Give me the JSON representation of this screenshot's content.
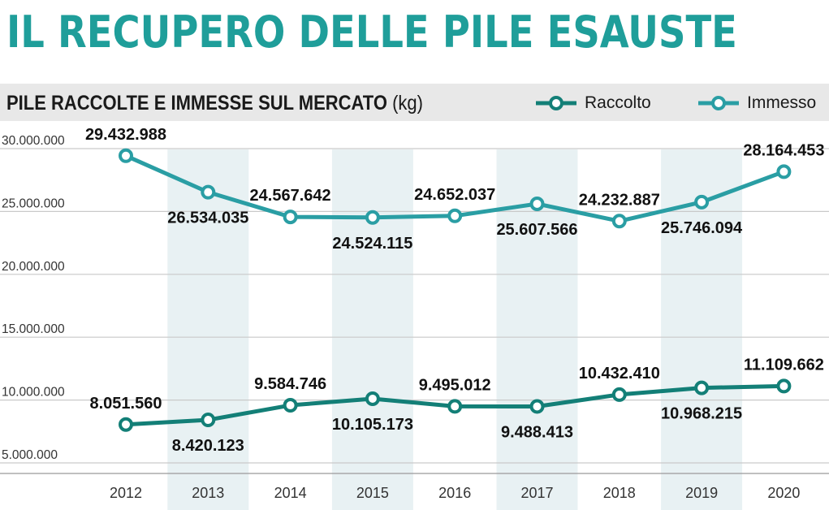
{
  "title": "IL RECUPERO DELLE PILE ESAUSTE",
  "subtitle": {
    "bold": "PILE RACCOLTE E IMMESSE SUL MERCATO",
    "unit": "(kg)"
  },
  "legend": [
    {
      "label": "Raccolto",
      "color": "#137f77"
    },
    {
      "label": "Immesso",
      "color": "#2a9ea4"
    }
  ],
  "chart_data": {
    "type": "line",
    "categories": [
      "2012",
      "2013",
      "2014",
      "2015",
      "2016",
      "2017",
      "2018",
      "2019",
      "2020"
    ],
    "series": [
      {
        "name": "Raccolto",
        "color": "#137f77",
        "values": [
          8051560,
          8420123,
          9584746,
          10105173,
          9495012,
          9488413,
          10432410,
          10968215,
          11109662
        ],
        "labels": [
          "8.051.560",
          "8.420.123",
          "9.584.746",
          "10.105.173",
          "9.495.012",
          "9.488.413",
          "10.432.410",
          "10.968.215",
          "11.109.662"
        ]
      },
      {
        "name": "Immesso",
        "color": "#2a9ea4",
        "values": [
          29432988,
          26534035,
          24567642,
          24524115,
          24652037,
          25607566,
          24232887,
          25746094,
          28164453
        ],
        "labels": [
          "29.432.988",
          "26.534.035",
          "24.567.642",
          "24.524.115",
          "24.652.037",
          "25.607.566",
          "24.232.887",
          "25.746.094",
          "28.164.453"
        ]
      }
    ],
    "y_ticks": [
      {
        "value": 5000000,
        "label": "5.000.000"
      },
      {
        "value": 10000000,
        "label": "10.000.000"
      },
      {
        "value": 15000000,
        "label": "15.000.000"
      },
      {
        "value": 20000000,
        "label": "20.000.000"
      },
      {
        "value": 25000000,
        "label": "25.000.000"
      },
      {
        "value": 30000000,
        "label": "30.000.000"
      }
    ],
    "ylim": [
      4000000,
      31000000
    ],
    "grid": true,
    "legend_position": "top-right",
    "shaded_columns": [
      "2013",
      "2015",
      "2017",
      "2019"
    ],
    "xlabel": "",
    "ylabel": ""
  }
}
